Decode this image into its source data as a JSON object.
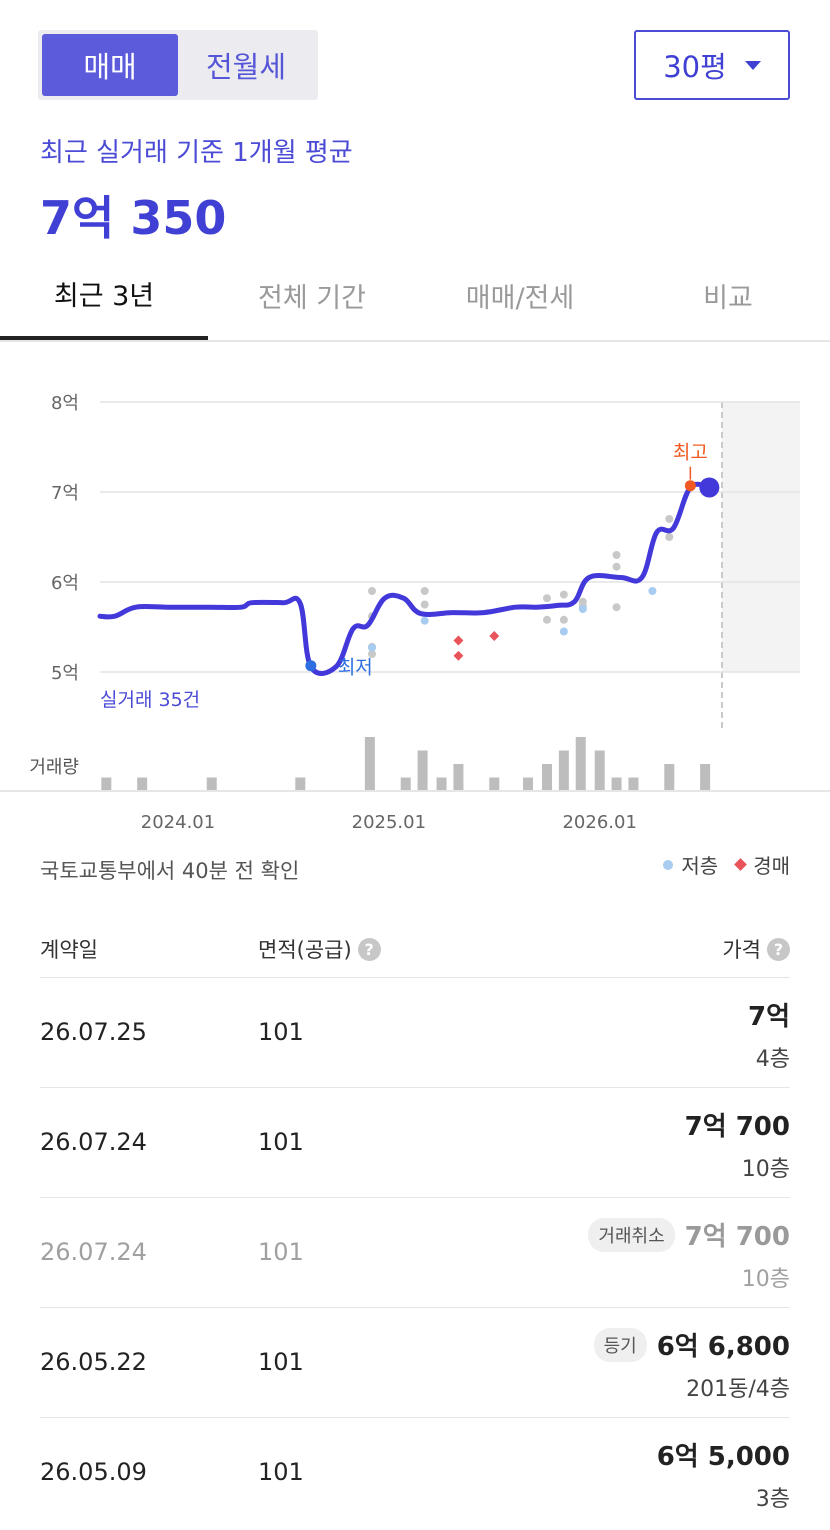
{
  "trade_type": {
    "active": "매매",
    "inactive": "전월세"
  },
  "size_select": {
    "value": "30평"
  },
  "summary": {
    "subtitle": "최근 실거래 기준 1개월 평균",
    "price": "7억 350"
  },
  "tabs": [
    "최근 3년",
    "전체 기간",
    "매매/전세",
    "비교"
  ],
  "chart_data": {
    "type": "line",
    "y_ticks": [
      "8억",
      "7억",
      "6억",
      "5억"
    ],
    "ylim": [
      5,
      8
    ],
    "x_ticks": [
      {
        "label": "2024.01",
        "t": 2024.0
      },
      {
        "label": "2025.01",
        "t": 2025.0
      },
      {
        "label": "2026.01",
        "t": 2026.0
      }
    ],
    "xlim": [
      2023.63,
      2026.95
    ],
    "future_start": 2026.58,
    "series": [
      {
        "values": [
          [
            2023.63,
            5.62
          ],
          [
            2023.7,
            5.62
          ],
          [
            2023.8,
            5.72
          ],
          [
            2023.95,
            5.72
          ],
          [
            2024.15,
            5.72
          ],
          [
            2024.3,
            5.72
          ],
          [
            2024.35,
            5.77
          ],
          [
            2024.5,
            5.77
          ],
          [
            2024.58,
            5.76
          ],
          [
            2024.63,
            5.06
          ],
          [
            2024.75,
            5.06
          ],
          [
            2024.83,
            5.48
          ],
          [
            2024.9,
            5.52
          ],
          [
            2024.98,
            5.82
          ],
          [
            2025.07,
            5.82
          ],
          [
            2025.15,
            5.65
          ],
          [
            2025.3,
            5.66
          ],
          [
            2025.45,
            5.66
          ],
          [
            2025.6,
            5.72
          ],
          [
            2025.7,
            5.72
          ],
          [
            2025.8,
            5.74
          ],
          [
            2025.88,
            5.78
          ],
          [
            2025.95,
            6.05
          ],
          [
            2026.1,
            6.05
          ],
          [
            2026.2,
            6.05
          ],
          [
            2026.27,
            6.55
          ],
          [
            2026.35,
            6.6
          ],
          [
            2026.43,
            7.05
          ],
          [
            2026.52,
            7.05
          ]
        ]
      }
    ],
    "scatter_gray": [
      [
        2024.92,
        5.9
      ],
      [
        2024.92,
        5.62
      ],
      [
        2024.92,
        5.28
      ],
      [
        2024.92,
        5.2
      ],
      [
        2025.17,
        5.9
      ],
      [
        2025.17,
        5.75
      ],
      [
        2025.75,
        5.82
      ],
      [
        2025.75,
        5.58
      ],
      [
        2025.83,
        5.86
      ],
      [
        2025.83,
        5.58
      ],
      [
        2025.92,
        5.78
      ],
      [
        2025.92,
        5.73
      ],
      [
        2026.08,
        6.3
      ],
      [
        2026.08,
        6.17
      ],
      [
        2026.08,
        5.72
      ],
      [
        2026.33,
        6.7
      ],
      [
        2026.33,
        6.5
      ]
    ],
    "scatter_low": [
      [
        2024.92,
        5.27
      ],
      [
        2025.17,
        5.57
      ],
      [
        2025.83,
        5.45
      ],
      [
        2025.92,
        5.7
      ],
      [
        2026.25,
        5.9
      ]
    ],
    "scatter_auction": [
      [
        2025.33,
        5.35
      ],
      [
        2025.33,
        5.18
      ],
      [
        2025.5,
        5.4
      ]
    ],
    "high_point": {
      "t": 2026.43,
      "v": 7.07,
      "label": "최고"
    },
    "low_point": {
      "t": 2024.63,
      "v": 5.07,
      "label": "최저"
    },
    "current_point": {
      "t": 2026.52,
      "v": 7.05
    },
    "count_label": "실거래 35건",
    "volume_label": "거래량",
    "volume": [
      [
        2023.66,
        1
      ],
      [
        2023.83,
        1
      ],
      [
        2024.16,
        1
      ],
      [
        2024.58,
        1
      ],
      [
        2024.91,
        4
      ],
      [
        2025.08,
        1
      ],
      [
        2025.16,
        3
      ],
      [
        2025.25,
        1
      ],
      [
        2025.33,
        2
      ],
      [
        2025.5,
        1
      ],
      [
        2025.66,
        1
      ],
      [
        2025.75,
        2
      ],
      [
        2025.83,
        3
      ],
      [
        2025.91,
        4
      ],
      [
        2026.0,
        3
      ],
      [
        2026.08,
        1
      ],
      [
        2026.16,
        1
      ],
      [
        2026.33,
        2
      ],
      [
        2026.5,
        2
      ]
    ],
    "colors": {
      "line": "#4338d9",
      "gray": "#c8c8c8",
      "low": "#a8cbf0",
      "auction": "#e8545a",
      "high": "#f05a22",
      "low_mark": "#2d6fe0",
      "bar": "#bdbdbd"
    }
  },
  "source": "국토교통부에서 40분 전 확인",
  "legend": {
    "low": "저층",
    "auction": "경매"
  },
  "table": {
    "headers": {
      "date": "계약일",
      "area": "면적(공급)",
      "price": "가격"
    },
    "rows": [
      {
        "date": "26.07.25",
        "area": "101",
        "price": "7억",
        "floor": "4층",
        "badge": "",
        "cancelled": false
      },
      {
        "date": "26.07.24",
        "area": "101",
        "price": "7억 700",
        "floor": "10층",
        "badge": "",
        "cancelled": false
      },
      {
        "date": "26.07.24",
        "area": "101",
        "price": "7억 700",
        "floor": "10층",
        "badge": "거래취소",
        "cancelled": true
      },
      {
        "date": "26.05.22",
        "area": "101",
        "price": "6억 6,800",
        "floor": "201동/4층",
        "badge": "등기",
        "cancelled": false
      },
      {
        "date": "26.05.09",
        "area": "101",
        "price": "6억 5,000",
        "floor": "3층",
        "badge": "",
        "cancelled": false
      }
    ]
  }
}
